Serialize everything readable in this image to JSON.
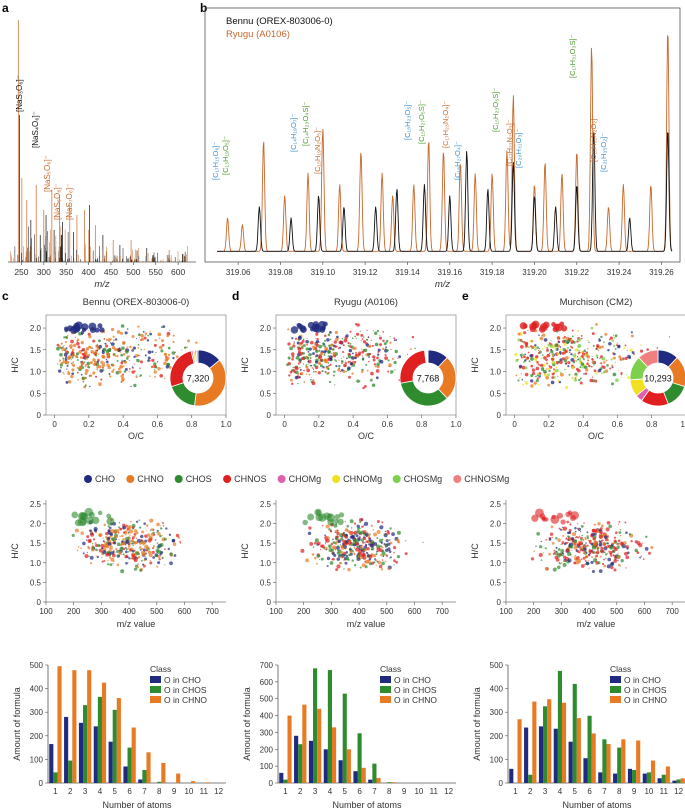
{
  "panel_letters": [
    "a",
    "b",
    "c",
    "d",
    "e"
  ],
  "colors": {
    "CHO": "#1f2a80",
    "CHNO": "#e87a23",
    "CHOS": "#2e8b2e",
    "CHNOS": "#e02020",
    "CHOMg": "#e060b0",
    "CHNOMg": "#f0e020",
    "CHOSMg": "#7ed04a",
    "CHNOSMg": "#f08080",
    "bennu_line": "#111111",
    "ryugu_line": "#c8692c",
    "blue_label": "#3a8fd0",
    "green_label": "#4a9a2a"
  },
  "legend_classes": [
    "CHO",
    "CHNO",
    "CHOS",
    "CHNOS",
    "CHOMg",
    "CHNOMg",
    "CHOSMg",
    "CHNOSMg"
  ],
  "panel_a": {
    "xlabel": "m/z",
    "xticks": [
      "250",
      "300",
      "350",
      "400",
      "450",
      "500",
      "550",
      "600"
    ],
    "peak_labels": [
      {
        "text": "[NaS₃O₆]⁻",
        "color": "#111111"
      },
      {
        "text": "[NaS₄O₆]⁻",
        "color": "#111111"
      },
      {
        "text": "[NaS₅O₆]⁻",
        "color": "#c8692c"
      },
      {
        "text": "[NaS₆O₆]⁻",
        "color": "#c8692c"
      },
      {
        "text": "[NaS₇O₆]⁻",
        "color": "#c8692c"
      }
    ]
  },
  "panel_b": {
    "legend": [
      "Bennu (OREX-803006-0)",
      "Ryugu (A0106)"
    ],
    "xlabel": "m/z",
    "xticks": [
      "319.06",
      "319.08",
      "319.10",
      "319.12",
      "319.14",
      "319.16",
      "319.18",
      "319.20",
      "319.22",
      "319.24",
      "319.26"
    ],
    "peak_labels": [
      {
        "text": "[C₁₇H₁₅O₆]⁻",
        "color": "#3a8fd0"
      },
      {
        "text": "[C₁₃H₁₉O₅]⁻",
        "color": "#4a9a2a"
      },
      {
        "text": "[C₁₄H₁₉O₇]⁻",
        "color": "#3a8fd0"
      },
      {
        "text": "[C₁₄H₂₃O₄S]⁻",
        "color": "#4a9a2a"
      },
      {
        "text": "[C₁₅H₁₉N₂O₅]⁻",
        "color": "#c8692c"
      },
      {
        "text": "[C₁₈H₂₃O₅]⁻",
        "color": "#3a8fd0"
      },
      {
        "text": "[C₁₅H₂₇O₅S]⁻",
        "color": "#4a9a2a"
      },
      {
        "text": "[C₁₇H₂₃N₂O₄]⁻",
        "color": "#c8692c"
      },
      {
        "text": "[C₁₈H₂₇O₄]⁻",
        "color": "#3a8fd0"
      },
      {
        "text": "[C₁₅H₂₃O₅S]⁻",
        "color": "#4a9a2a"
      },
      {
        "text": "[C₁₇H₂₇N₂O₃]⁻",
        "color": "#c8692c"
      },
      {
        "text": "[C₂₀H₃₁O₃]⁻",
        "color": "#3a8fd0"
      },
      {
        "text": "[C₁₇H₃₁O₃S]⁻",
        "color": "#4a9a2a"
      },
      {
        "text": "[C₁₈H₃₁N₂O₂]⁻",
        "color": "#c8692c"
      },
      {
        "text": "[C₂₁H₃₅O₂]⁻",
        "color": "#3a8fd0"
      }
    ]
  },
  "samples": [
    {
      "title": "Bennu (OREX-803006-0)",
      "total": "7,320",
      "donut": [
        {
          "cls": "CHO",
          "v": 14
        },
        {
          "cls": "CHNO",
          "v": 38
        },
        {
          "cls": "CHOS",
          "v": 18
        },
        {
          "cls": "CHNOS",
          "v": 26
        },
        {
          "cls": "CHOMg",
          "v": 1
        },
        {
          "cls": "CHNOMg",
          "v": 1
        },
        {
          "cls": "CHOSMg",
          "v": 1
        },
        {
          "cls": "CHNOSMg",
          "v": 1
        }
      ]
    },
    {
      "title": "Ryugu (A0106)",
      "total": "7,768",
      "donut": [
        {
          "cls": "CHO",
          "v": 12
        },
        {
          "cls": "CHNO",
          "v": 26
        },
        {
          "cls": "CHOS",
          "v": 34
        },
        {
          "cls": "CHNOS",
          "v": 26
        },
        {
          "cls": "CHOMg",
          "v": 0.5
        },
        {
          "cls": "CHNOMg",
          "v": 0.5
        },
        {
          "cls": "CHOSMg",
          "v": 0.5
        },
        {
          "cls": "CHNOSMg",
          "v": 0.5
        }
      ]
    },
    {
      "title": "Murchison (CM2)",
      "total": "10,293",
      "donut": [
        {
          "cls": "CHO",
          "v": 12
        },
        {
          "cls": "CHNO",
          "v": 18
        },
        {
          "cls": "CHOS",
          "v": 14
        },
        {
          "cls": "CHNOS",
          "v": 16
        },
        {
          "cls": "CHOMg",
          "v": 4
        },
        {
          "cls": "CHNOMg",
          "v": 10
        },
        {
          "cls": "CHOSMg",
          "v": 14
        },
        {
          "cls": "CHNOSMg",
          "v": 12
        }
      ]
    }
  ],
  "vk_axes": {
    "xlabel": "O/C",
    "ylabel": "H/C",
    "xticks": [
      "0",
      "0.2",
      "0.4",
      "0.6",
      "0.8",
      "1.0"
    ],
    "yticks": [
      "0",
      "0.5",
      "1.0",
      "1.5",
      "2.0"
    ]
  },
  "mz_axes": {
    "xlabel": "m/z value",
    "ylabel": "H/C",
    "xticks": [
      "100",
      "200",
      "300",
      "400",
      "500",
      "600",
      "700"
    ],
    "yticks": [
      "0",
      "0.5",
      "1.0",
      "1.5",
      "2.0",
      "2.5"
    ]
  },
  "chart_data": [
    {
      "type": "bar",
      "title": "",
      "legend_title": "Class",
      "xlabel": "Number of atoms",
      "ylabel": "Amount of formula",
      "ylim": [
        0,
        500
      ],
      "yticks": [
        "0",
        "100",
        "200",
        "300",
        "400",
        "500"
      ],
      "categories": [
        "1",
        "2",
        "3",
        "4",
        "5",
        "6",
        "7",
        "8",
        "9",
        "10",
        "11",
        "12"
      ],
      "series": [
        {
          "name": "O in CHO",
          "color": "#1f2a80",
          "values": [
            165,
            280,
            255,
            240,
            175,
            70,
            15,
            0,
            0,
            0,
            0,
            0
          ]
        },
        {
          "name": "O in CHOS",
          "color": "#2e8b2e",
          "values": [
            45,
            95,
            330,
            365,
            310,
            150,
            55,
            5,
            0,
            0,
            0,
            0
          ]
        },
        {
          "name": "O in CHNO",
          "color": "#e87a23",
          "values": [
            495,
            478,
            478,
            425,
            360,
            235,
            130,
            85,
            40,
            8,
            3,
            0
          ]
        }
      ]
    },
    {
      "type": "bar",
      "title": "",
      "legend_title": "Class",
      "xlabel": "Number of atoms",
      "ylabel": "Amount of formula",
      "ylim": [
        0,
        700
      ],
      "yticks": [
        "0",
        "100",
        "200",
        "300",
        "400",
        "500",
        "600",
        "700"
      ],
      "categories": [
        "1",
        "2",
        "3",
        "4",
        "5",
        "6",
        "7",
        "8",
        "9",
        "10",
        "11",
        "12"
      ],
      "series": [
        {
          "name": "O in CHO",
          "color": "#1f2a80",
          "values": [
            60,
            280,
            250,
            200,
            135,
            70,
            20,
            0,
            0,
            0,
            0,
            0
          ]
        },
        {
          "name": "O in CHOS",
          "color": "#2e8b2e",
          "values": [
            20,
            230,
            680,
            670,
            530,
            295,
            115,
            5,
            0,
            0,
            0,
            0
          ]
        },
        {
          "name": "O in CHNO",
          "color": "#e87a23",
          "values": [
            400,
            465,
            440,
            330,
            200,
            90,
            30,
            5,
            0,
            0,
            0,
            0
          ]
        }
      ]
    },
    {
      "type": "bar",
      "title": "",
      "legend_title": "Class",
      "xlabel": "Number of atoms",
      "ylabel": "Amount of formula",
      "ylim": [
        0,
        500
      ],
      "yticks": [
        "0",
        "100",
        "200",
        "300",
        "400",
        "500"
      ],
      "categories": [
        "1",
        "2",
        "3",
        "4",
        "5",
        "6",
        "7",
        "8",
        "9",
        "10",
        "11",
        "12"
      ],
      "series": [
        {
          "name": "O in CHO",
          "color": "#1f2a80",
          "values": [
            60,
            235,
            240,
            230,
            175,
            105,
            45,
            40,
            60,
            40,
            20,
            10
          ]
        },
        {
          "name": "O in CHOS",
          "color": "#2e8b2e",
          "values": [
            0,
            35,
            325,
            475,
            420,
            285,
            185,
            150,
            55,
            45,
            35,
            15
          ]
        },
        {
          "name": "O in CHNO",
          "color": "#e87a23",
          "values": [
            270,
            345,
            355,
            340,
            275,
            210,
            165,
            185,
            180,
            95,
            70,
            20
          ]
        }
      ]
    }
  ]
}
